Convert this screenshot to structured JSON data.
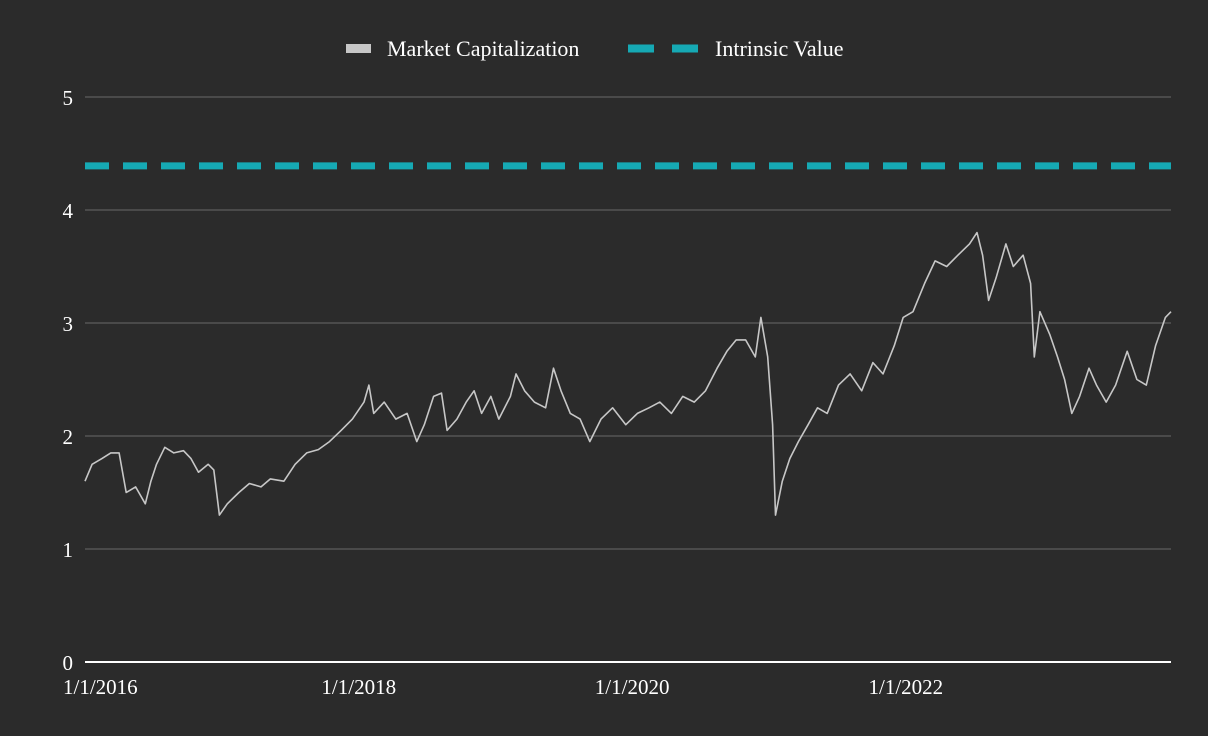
{
  "chart_data": {
    "type": "line",
    "title": "",
    "xlabel": "",
    "ylabel": "",
    "ylim": [
      0,
      5
    ],
    "y_ticks": [
      "0",
      "1",
      "2",
      "3",
      "4",
      "5"
    ],
    "x_ticks": [
      "1/1/2016",
      "1/1/2018",
      "1/1/2020",
      "1/1/2022"
    ],
    "grid": true,
    "legend_position": "top-center",
    "series": [
      {
        "name": "Market Capitalization",
        "color": "#c7c7c7",
        "style": "solid",
        "points": [
          [
            "2016-01-01",
            1.6
          ],
          [
            "2016-01-20",
            1.75
          ],
          [
            "2016-02-15",
            1.8
          ],
          [
            "2016-03-10",
            1.85
          ],
          [
            "2016-04-01",
            1.85
          ],
          [
            "2016-04-20",
            1.5
          ],
          [
            "2016-05-15",
            1.55
          ],
          [
            "2016-06-10",
            1.4
          ],
          [
            "2016-06-25",
            1.6
          ],
          [
            "2016-07-10",
            1.75
          ],
          [
            "2016-08-01",
            1.9
          ],
          [
            "2016-08-25",
            1.85
          ],
          [
            "2016-09-20",
            1.87
          ],
          [
            "2016-10-10",
            1.8
          ],
          [
            "2016-10-30",
            1.68
          ],
          [
            "2016-11-25",
            1.75
          ],
          [
            "2016-12-10",
            1.7
          ],
          [
            "2016-12-25",
            1.3
          ],
          [
            "2017-01-15",
            1.4
          ],
          [
            "2017-02-15",
            1.5
          ],
          [
            "2017-03-15",
            1.58
          ],
          [
            "2017-04-15",
            1.55
          ],
          [
            "2017-05-10",
            1.62
          ],
          [
            "2017-06-15",
            1.6
          ],
          [
            "2017-07-15",
            1.75
          ],
          [
            "2017-08-15",
            1.85
          ],
          [
            "2017-09-15",
            1.88
          ],
          [
            "2017-10-15",
            1.95
          ],
          [
            "2017-11-15",
            2.05
          ],
          [
            "2017-12-15",
            2.15
          ],
          [
            "2018-01-15",
            2.3
          ],
          [
            "2018-01-28",
            2.45
          ],
          [
            "2018-02-10",
            2.2
          ],
          [
            "2018-03-10",
            2.3
          ],
          [
            "2018-04-10",
            2.15
          ],
          [
            "2018-05-10",
            2.2
          ],
          [
            "2018-06-05",
            1.95
          ],
          [
            "2018-06-25",
            2.1
          ],
          [
            "2018-07-20",
            2.35
          ],
          [
            "2018-08-10",
            2.38
          ],
          [
            "2018-08-25",
            2.05
          ],
          [
            "2018-09-20",
            2.15
          ],
          [
            "2018-10-15",
            2.3
          ],
          [
            "2018-11-05",
            2.4
          ],
          [
            "2018-11-25",
            2.2
          ],
          [
            "2018-12-20",
            2.35
          ],
          [
            "2019-01-10",
            2.15
          ],
          [
            "2019-02-10",
            2.35
          ],
          [
            "2019-02-25",
            2.55
          ],
          [
            "2019-03-20",
            2.4
          ],
          [
            "2019-04-15",
            2.3
          ],
          [
            "2019-05-15",
            2.25
          ],
          [
            "2019-06-05",
            2.6
          ],
          [
            "2019-06-25",
            2.4
          ],
          [
            "2019-07-20",
            2.2
          ],
          [
            "2019-08-15",
            2.15
          ],
          [
            "2019-09-10",
            1.95
          ],
          [
            "2019-10-10",
            2.15
          ],
          [
            "2019-11-10",
            2.25
          ],
          [
            "2019-12-15",
            2.1
          ],
          [
            "2020-01-15",
            2.2
          ],
          [
            "2020-02-15",
            2.25
          ],
          [
            "2020-03-15",
            2.3
          ],
          [
            "2020-04-15",
            2.2
          ],
          [
            "2020-05-15",
            2.35
          ],
          [
            "2020-06-15",
            2.3
          ],
          [
            "2020-07-15",
            2.4
          ],
          [
            "2020-08-15",
            2.6
          ],
          [
            "2020-09-10",
            2.75
          ],
          [
            "2020-10-05",
            2.85
          ],
          [
            "2020-10-30",
            2.85
          ],
          [
            "2020-11-25",
            2.7
          ],
          [
            "2020-12-10",
            3.05
          ],
          [
            "2020-12-28",
            2.7
          ],
          [
            "2021-01-10",
            2.1
          ],
          [
            "2021-01-18",
            1.3
          ],
          [
            "2021-02-05",
            1.6
          ],
          [
            "2021-02-25",
            1.8
          ],
          [
            "2021-03-20",
            1.95
          ],
          [
            "2021-04-15",
            2.1
          ],
          [
            "2021-05-10",
            2.25
          ],
          [
            "2021-06-05",
            2.2
          ],
          [
            "2021-07-05",
            2.45
          ],
          [
            "2021-08-05",
            2.55
          ],
          [
            "2021-09-05",
            2.4
          ],
          [
            "2021-10-05",
            2.65
          ],
          [
            "2021-11-01",
            2.55
          ],
          [
            "2021-12-01",
            2.8
          ],
          [
            "2021-12-25",
            3.05
          ],
          [
            "2022-01-20",
            3.1
          ],
          [
            "2022-02-20",
            3.35
          ],
          [
            "2022-03-20",
            3.55
          ],
          [
            "2022-04-20",
            3.5
          ],
          [
            "2022-05-20",
            3.6
          ],
          [
            "2022-06-20",
            3.7
          ],
          [
            "2022-07-10",
            3.8
          ],
          [
            "2022-07-25",
            3.6
          ],
          [
            "2022-08-10",
            3.2
          ],
          [
            "2022-08-30",
            3.4
          ],
          [
            "2022-09-25",
            3.7
          ],
          [
            "2022-10-15",
            3.5
          ],
          [
            "2022-11-10",
            3.6
          ],
          [
            "2022-11-30",
            3.35
          ],
          [
            "2022-12-10",
            2.7
          ],
          [
            "2022-12-25",
            3.1
          ],
          [
            "2023-01-20",
            2.9
          ],
          [
            "2023-02-10",
            2.7
          ],
          [
            "2023-03-01",
            2.5
          ],
          [
            "2023-03-20",
            2.2
          ],
          [
            "2023-04-10",
            2.35
          ],
          [
            "2023-05-05",
            2.6
          ],
          [
            "2023-05-25",
            2.45
          ],
          [
            "2023-06-20",
            2.3
          ],
          [
            "2023-07-15",
            2.45
          ],
          [
            "2023-08-15",
            2.75
          ],
          [
            "2023-09-10",
            2.5
          ],
          [
            "2023-10-05",
            2.45
          ],
          [
            "2023-10-30",
            2.8
          ],
          [
            "2023-11-25",
            3.05
          ],
          [
            "2023-12-10",
            3.1
          ]
        ]
      },
      {
        "name": "Intrinsic Value",
        "color": "#16a9b4",
        "style": "dashed",
        "points": [
          [
            "2016-01-01",
            4.39
          ],
          [
            "2023-12-10",
            4.39
          ]
        ]
      }
    ]
  },
  "colors": {
    "background": "#2b2b2b",
    "gridline": "#555555",
    "axis": "#ffffff",
    "text": "#ffffff"
  }
}
